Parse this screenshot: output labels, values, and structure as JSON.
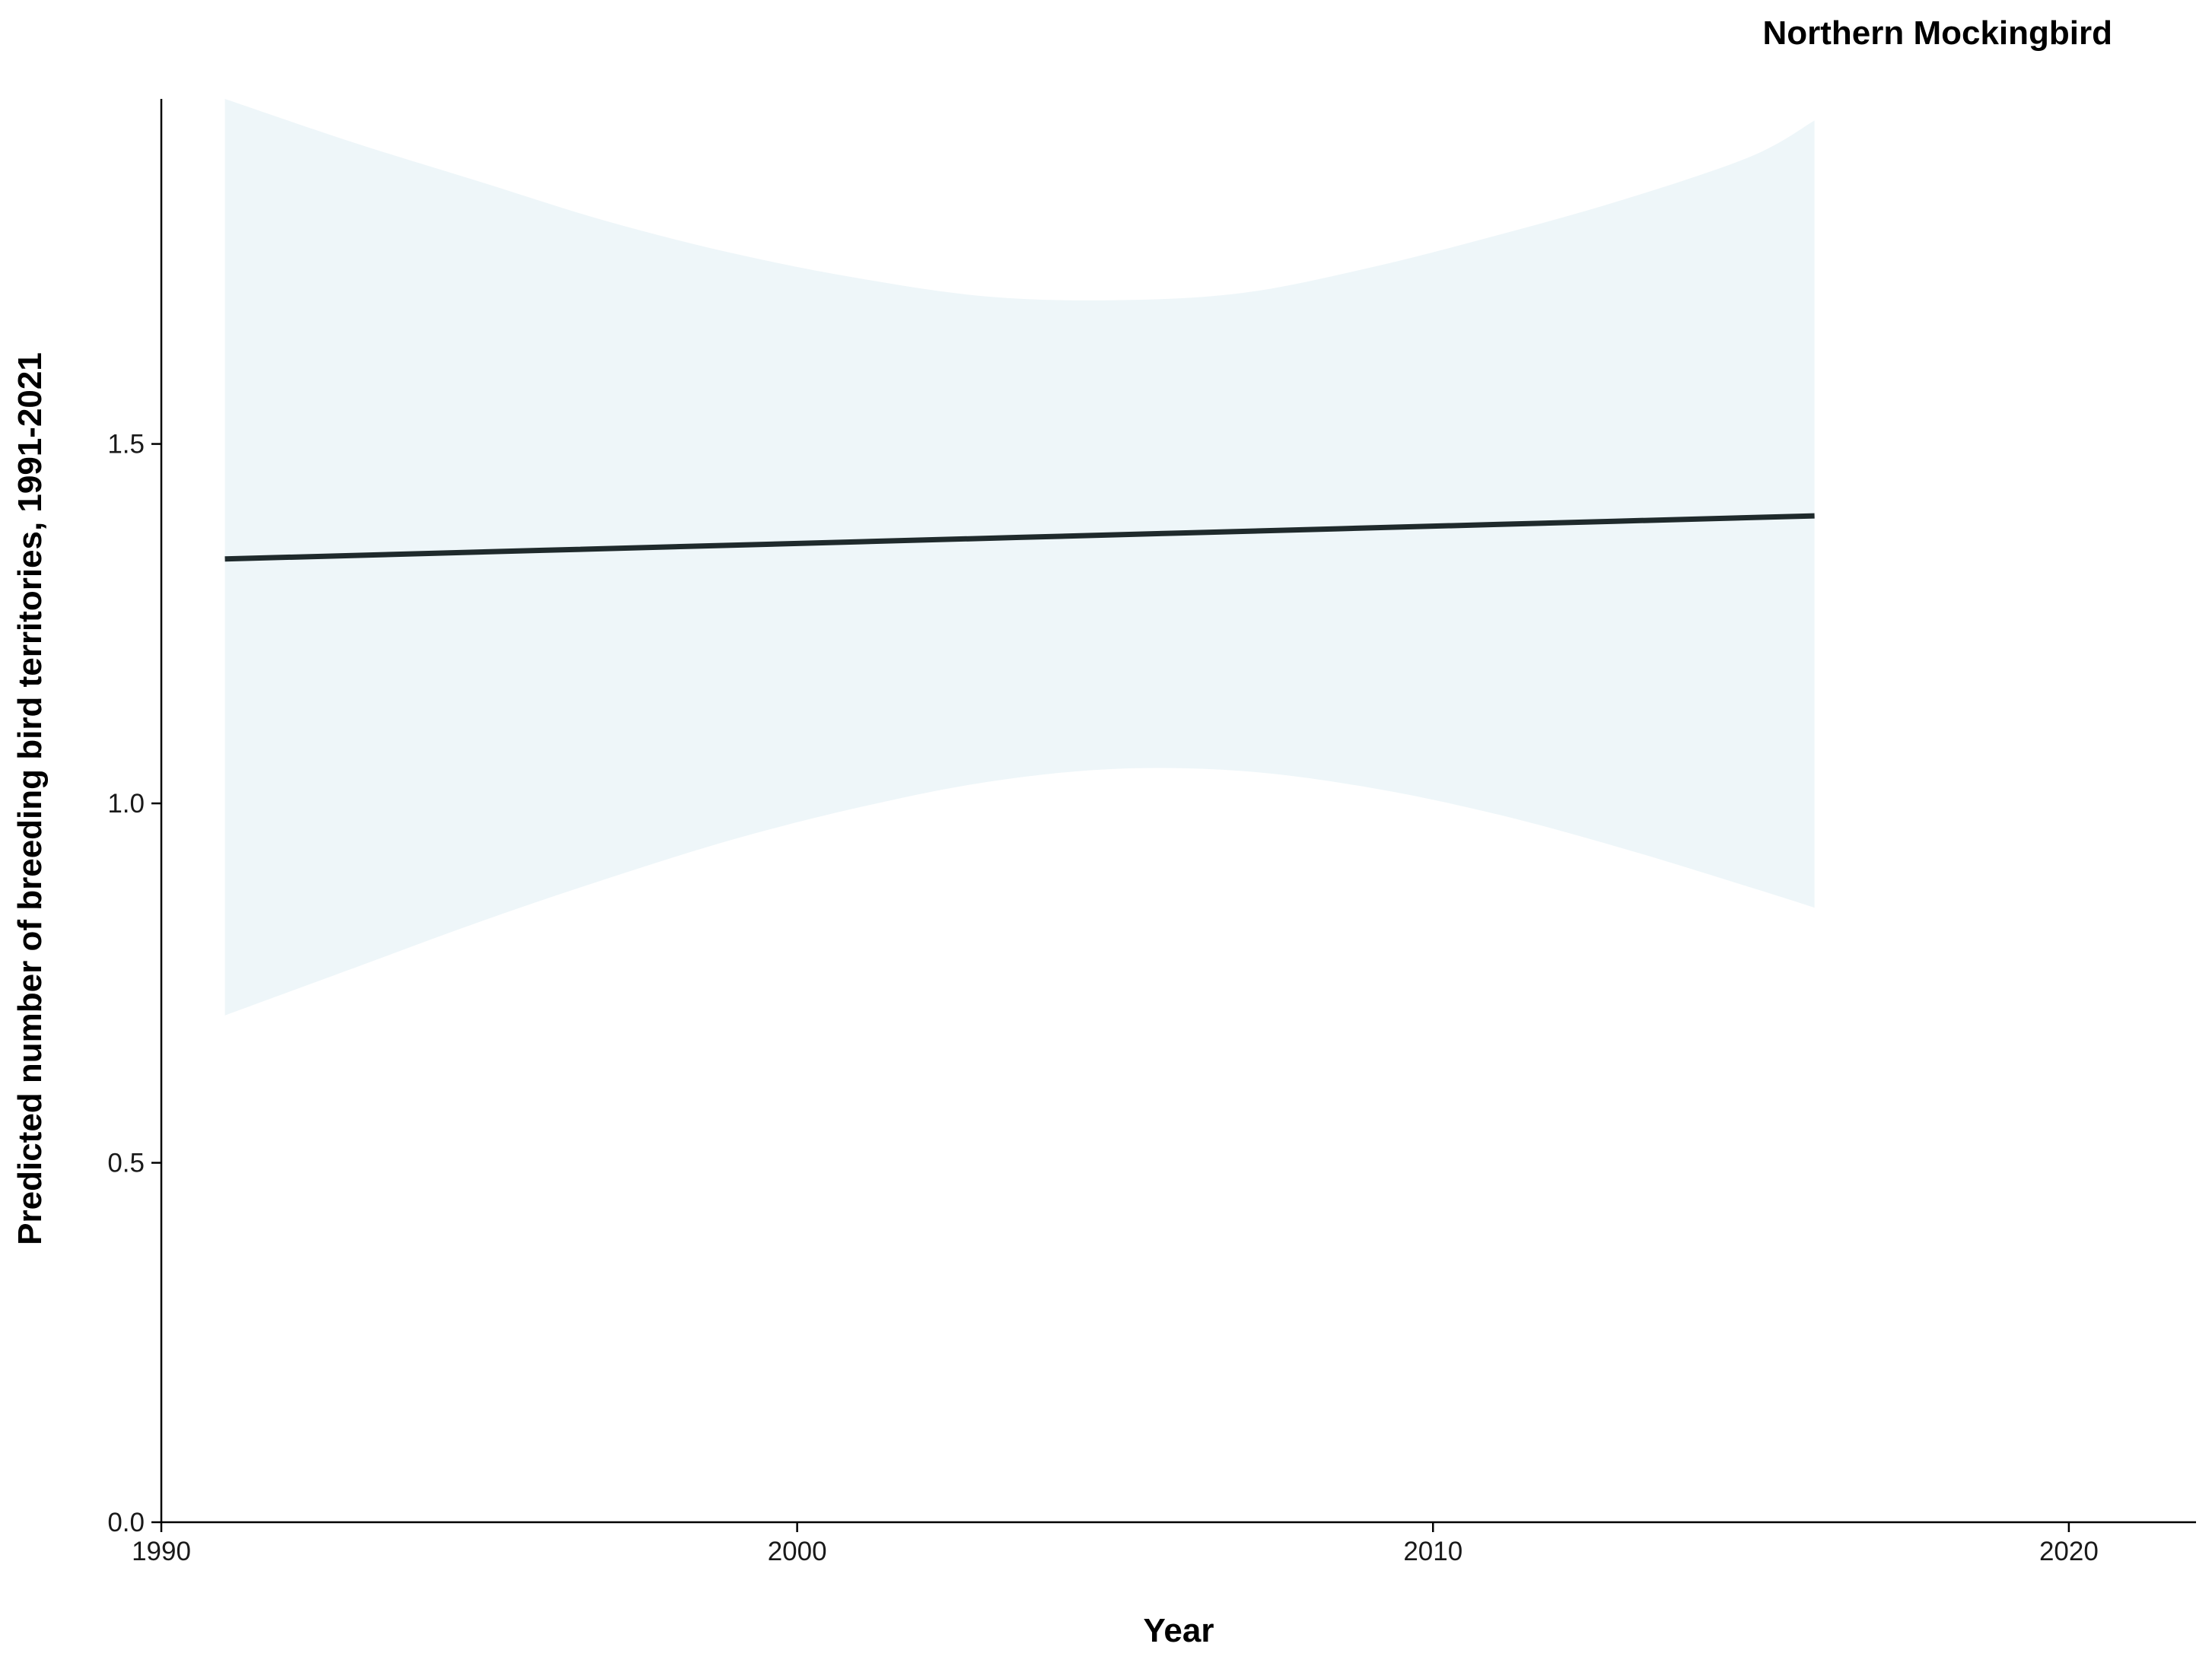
{
  "chart_data": {
    "type": "line",
    "title": "Northern Mockingbird",
    "xlabel": "Year",
    "ylabel": "Predicted number of breeding bird territories, 1991-2021",
    "xlim": [
      1990,
      2022
    ],
    "ylim": [
      0,
      1.98
    ],
    "x_ticks": [
      1990,
      2000,
      2010,
      2020
    ],
    "x_tick_labels": [
      "1990",
      "2000",
      "2010",
      "2020"
    ],
    "y_ticks": [
      0,
      0.5,
      1.0,
      1.5
    ],
    "y_tick_labels": [
      "0.0",
      "0.5",
      "1.0",
      "1.5"
    ],
    "grid": false,
    "legend": "none",
    "series": [
      {
        "kind": "line",
        "x": [
          1991,
          1996,
          2001,
          2006,
          2011,
          2016
        ],
        "y": [
          1.34,
          1.352,
          1.364,
          1.376,
          1.388,
          1.4
        ],
        "color": "#1f2a2c"
      },
      {
        "kind": "confidence_band",
        "x": [
          1991,
          1993,
          1995,
          1997,
          1999,
          2001,
          2003,
          2005,
          2007,
          2009,
          2011,
          2013,
          2015,
          2016
        ],
        "lower": [
          0.705,
          0.77,
          0.835,
          0.895,
          0.95,
          0.995,
          1.03,
          1.048,
          1.045,
          1.022,
          0.985,
          0.937,
          0.883,
          0.855
        ],
        "upper": [
          1.98,
          1.92,
          1.865,
          1.81,
          1.765,
          1.73,
          1.705,
          1.7,
          1.71,
          1.745,
          1.79,
          1.84,
          1.9,
          1.95
        ],
        "color": "#eef6f9"
      }
    ],
    "colors": {
      "band": "#eef6f9",
      "line": "#1f2a2c",
      "axis": "#000000"
    }
  }
}
